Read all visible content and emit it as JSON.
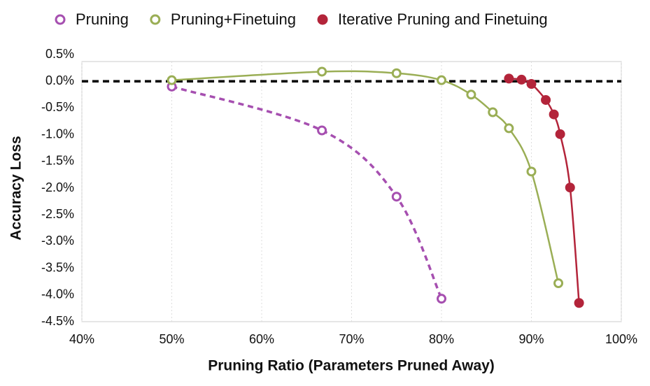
{
  "chart_data": {
    "type": "line",
    "xlabel": "Pruning Ratio (Parameters Pruned Away)",
    "ylabel": "Accuracy Loss",
    "xlim": [
      40,
      100
    ],
    "xticks": [
      {
        "value": 40,
        "label": "40%"
      },
      {
        "value": 50,
        "label": "50%"
      },
      {
        "value": 60,
        "label": "60%"
      },
      {
        "value": 70,
        "label": "70%"
      },
      {
        "value": 80,
        "label": "80%"
      },
      {
        "value": 90,
        "label": "90%"
      },
      {
        "value": 100,
        "label": "100%"
      }
    ],
    "ylim": [
      -4.5,
      0.5
    ],
    "yticks": [
      {
        "value": 0.5,
        "label": "0.5%"
      },
      {
        "value": 0,
        "label": "0.0%"
      },
      {
        "value": -0.5,
        "label": "-0.5%"
      },
      {
        "value": -1,
        "label": "-1.0%"
      },
      {
        "value": -1.5,
        "label": "-1.5%"
      },
      {
        "value": -2,
        "label": "-2.0%"
      },
      {
        "value": -2.5,
        "label": "-2.5%"
      },
      {
        "value": -3,
        "label": "-3.0%"
      },
      {
        "value": -3.5,
        "label": "-3.5%"
      },
      {
        "value": -4,
        "label": "-4.0%"
      },
      {
        "value": -4.5,
        "label": "-4.5%"
      }
    ],
    "grid": "x",
    "zero_line_dashed": true,
    "legend": "top",
    "series": [
      {
        "name": "Pruning",
        "color": "#a64fb0",
        "dashed": true,
        "marker": "open",
        "x": [
          50,
          66.7,
          75,
          80
        ],
        "values": [
          -0.1,
          -0.92,
          -2.16,
          -4.07
        ]
      },
      {
        "name": "Pruning+Finetuing",
        "color": "#9aae55",
        "dashed": false,
        "marker": "open",
        "x": [
          50,
          66.7,
          75,
          80,
          83.3,
          85.7,
          87.5,
          90,
          93
        ],
        "values": [
          0.02,
          0.18,
          0.15,
          0.02,
          -0.25,
          -0.58,
          -0.88,
          -1.69,
          -3.78
        ]
      },
      {
        "name": "Iterative Pruning and Finetuing",
        "color": "#b3243a",
        "dashed": false,
        "marker": "filled",
        "x": [
          87.5,
          88.9,
          90,
          91.6,
          92.5,
          93.2,
          94.3,
          95.3
        ],
        "values": [
          0.05,
          0.03,
          -0.05,
          -0.35,
          -0.62,
          -0.99,
          -1.99,
          -4.15
        ]
      }
    ]
  }
}
